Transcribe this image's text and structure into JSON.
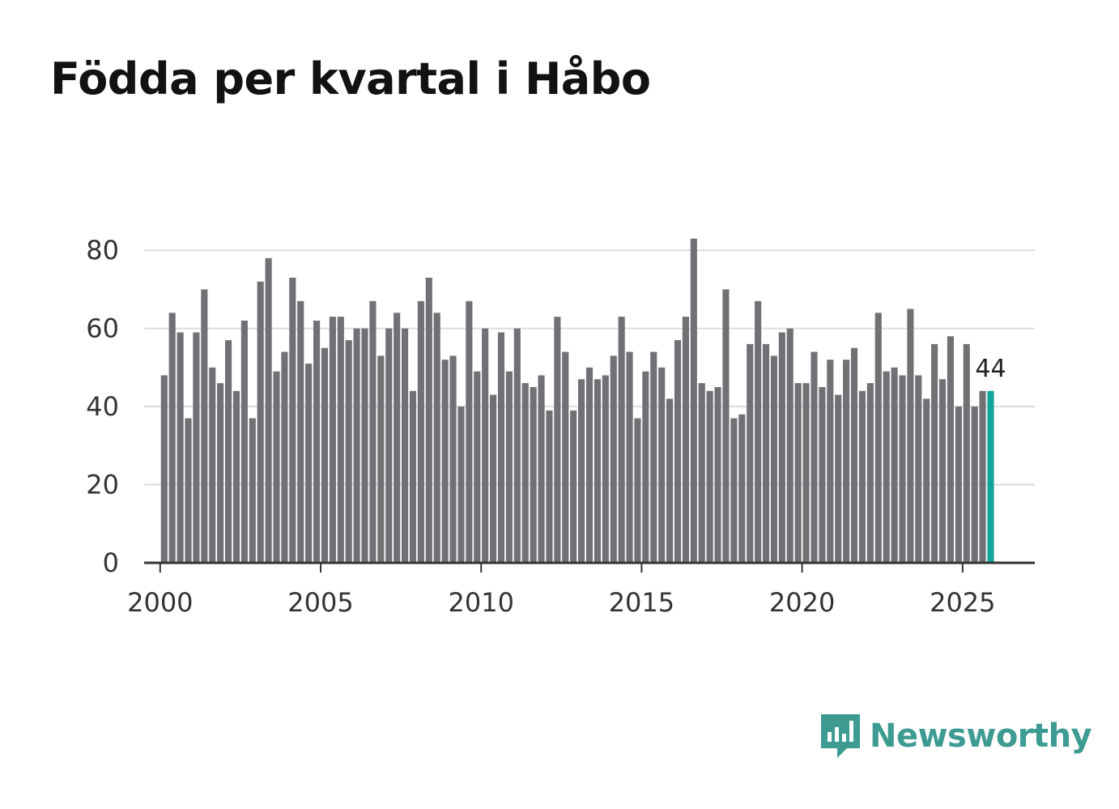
{
  "title": "Födda per kvartal i Håbo",
  "brand": {
    "name": "Newsworthy",
    "icon": "newsworthy-logo-icon",
    "color": "#3d9b92"
  },
  "colors": {
    "bar": "#717074",
    "highlight": "#12a39a",
    "grid": "#dddddd",
    "axis": "#333333"
  },
  "chart_data": {
    "type": "bar",
    "title": "Födda per kvartal i Håbo",
    "xlabel": "",
    "ylabel": "",
    "x_start": 2000,
    "x_step": 0.25,
    "xlim": [
      1999.5,
      2027.25
    ],
    "ylim": [
      0,
      85
    ],
    "yticks": [
      0,
      20,
      40,
      60,
      80
    ],
    "xticks": [
      2000,
      2005,
      2010,
      2015,
      2020,
      2025
    ],
    "grid": true,
    "values": [
      48,
      64,
      59,
      37,
      59,
      70,
      50,
      46,
      57,
      44,
      62,
      37,
      72,
      78,
      49,
      54,
      73,
      67,
      51,
      62,
      55,
      63,
      63,
      57,
      60,
      60,
      67,
      53,
      60,
      64,
      60,
      44,
      67,
      73,
      64,
      52,
      53,
      40,
      67,
      49,
      60,
      43,
      59,
      49,
      60,
      46,
      45,
      48,
      39,
      63,
      54,
      39,
      47,
      50,
      47,
      48,
      53,
      63,
      54,
      37,
      49,
      54,
      50,
      42,
      57,
      63,
      83,
      46,
      44,
      45,
      70,
      37,
      38,
      56,
      67,
      56,
      53,
      59,
      60,
      46,
      46,
      54,
      45,
      52,
      43,
      52,
      55,
      44,
      46,
      64,
      49,
      50,
      48,
      65,
      48,
      42,
      56,
      47,
      58,
      40,
      56,
      40,
      44,
      44
    ],
    "highlight_last": true,
    "last_value_label": "44"
  }
}
